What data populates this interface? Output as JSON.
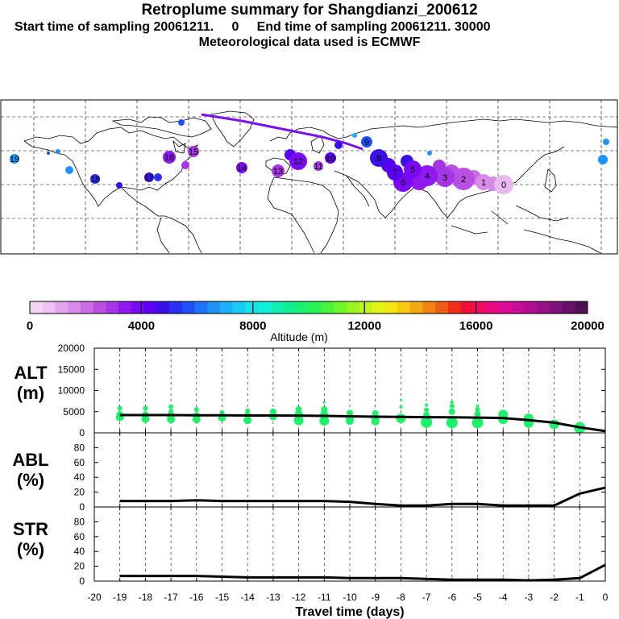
{
  "header": {
    "title": "Retroplume summary for Shangdianzi_200612",
    "sampling": "Start time of sampling 20061211.     0     End time of sampling 20061211. 30000",
    "met": "Meteorological data used is ECMWF"
  },
  "colorbar": {
    "ticks": [
      "0",
      "4000",
      "8000",
      "12000",
      "16000",
      "20000"
    ],
    "label": "Altitude (m)",
    "colors": [
      "#f3d6f6",
      "#edc1f1",
      "#e3a6ec",
      "#d88ae7",
      "#cb6ee3",
      "#b94fe0",
      "#a635e6",
      "#9019ef",
      "#7a0af4",
      "#5a00f0",
      "#3a10e8",
      "#2a2ef0",
      "#2050f5",
      "#1d72f6",
      "#1d92f7",
      "#1bb0f7",
      "#18cdf4",
      "#16e4ea",
      "#13eed6",
      "#11efb4",
      "#12ef90",
      "#1af072",
      "#29f252",
      "#48f43a",
      "#6ff52a",
      "#98f522",
      "#bff41c",
      "#e0f218",
      "#f4e414",
      "#f8c812",
      "#f6a812",
      "#f28212",
      "#ef5c14",
      "#ef2e1a",
      "#f10e38",
      "#f00a62",
      "#e80a82",
      "#da0c96",
      "#c70c96",
      "#b10e92",
      "#981086",
      "#7e107a",
      "#661068",
      "#501056"
    ]
  },
  "map": {
    "trajectory_labels": [
      "0",
      "1",
      "2",
      "3",
      "4",
      "5",
      "6",
      "7",
      "8",
      "9",
      "10",
      "11",
      "12",
      "13",
      "14",
      "15",
      "16",
      "17",
      "18",
      "19"
    ]
  },
  "panels": {
    "alt_label": "ALT\n(m)",
    "abl_label": "ABL\n(%)",
    "str_label": "STR\n(%)",
    "xlabel": "Travel time (days)"
  },
  "chart_data": [
    {
      "type": "line",
      "title": "ALT (m)",
      "x": [
        -19,
        -18,
        -17,
        -16,
        -15,
        -14,
        -13,
        -12,
        -11,
        -10,
        -9,
        -8,
        -7,
        -6,
        -5,
        -4,
        -3,
        -2,
        -1,
        0
      ],
      "series": [
        {
          "name": "mean altitude",
          "values": [
            4200,
            4200,
            4200,
            4150,
            4150,
            4100,
            4100,
            4050,
            4000,
            3900,
            3800,
            3750,
            3700,
            3650,
            3600,
            3500,
            3000,
            2400,
            1300,
            400
          ]
        }
      ],
      "xlim": [
        -20,
        0
      ],
      "ylim": [
        0,
        20000
      ],
      "yticks": [
        0,
        5000,
        10000,
        15000,
        20000
      ],
      "scatter": [
        {
          "x": -19,
          "y": 5800,
          "s": 3
        },
        {
          "x": -19,
          "y": 4400,
          "s": 4
        },
        {
          "x": -19,
          "y": 3700,
          "s": 5
        },
        {
          "x": -18,
          "y": 5800,
          "s": 3
        },
        {
          "x": -18,
          "y": 4300,
          "s": 4
        },
        {
          "x": -18,
          "y": 3300,
          "s": 5
        },
        {
          "x": -17,
          "y": 6200,
          "s": 3
        },
        {
          "x": -17,
          "y": 5100,
          "s": 3
        },
        {
          "x": -17,
          "y": 4000,
          "s": 5
        },
        {
          "x": -17,
          "y": 3200,
          "s": 5
        },
        {
          "x": -16,
          "y": 5500,
          "s": 3
        },
        {
          "x": -16,
          "y": 4100,
          "s": 4
        },
        {
          "x": -16,
          "y": 3200,
          "s": 5
        },
        {
          "x": -15,
          "y": 4800,
          "s": 3
        },
        {
          "x": -15,
          "y": 3600,
          "s": 5
        },
        {
          "x": -14,
          "y": 5200,
          "s": 3
        },
        {
          "x": -14,
          "y": 4200,
          "s": 4
        },
        {
          "x": -14,
          "y": 3000,
          "s": 5
        },
        {
          "x": -13,
          "y": 5000,
          "s": 4
        },
        {
          "x": -13,
          "y": 3900,
          "s": 5
        },
        {
          "x": -12,
          "y": 5500,
          "s": 4
        },
        {
          "x": -12,
          "y": 4300,
          "s": 5
        },
        {
          "x": -12,
          "y": 2900,
          "s": 6
        },
        {
          "x": -11,
          "y": 7200,
          "s": 1.5
        },
        {
          "x": -11,
          "y": 5500,
          "s": 4
        },
        {
          "x": -11,
          "y": 4300,
          "s": 5
        },
        {
          "x": -11,
          "y": 2800,
          "s": 6
        },
        {
          "x": -10,
          "y": 4700,
          "s": 4
        },
        {
          "x": -10,
          "y": 3600,
          "s": 5
        },
        {
          "x": -10,
          "y": 2800,
          "s": 5
        },
        {
          "x": -9,
          "y": 4600,
          "s": 4
        },
        {
          "x": -9,
          "y": 3600,
          "s": 5
        },
        {
          "x": -9,
          "y": 2700,
          "s": 5
        },
        {
          "x": -8,
          "y": 7800,
          "s": 1.5
        },
        {
          "x": -8,
          "y": 6100,
          "s": 2
        },
        {
          "x": -8,
          "y": 3400,
          "s": 6
        },
        {
          "x": -7,
          "y": 6600,
          "s": 2
        },
        {
          "x": -7,
          "y": 5400,
          "s": 3
        },
        {
          "x": -7,
          "y": 4200,
          "s": 4
        },
        {
          "x": -7,
          "y": 2500,
          "s": 7
        },
        {
          "x": -6,
          "y": 7200,
          "s": 2
        },
        {
          "x": -6,
          "y": 6300,
          "s": 3
        },
        {
          "x": -6,
          "y": 5000,
          "s": 4
        },
        {
          "x": -6,
          "y": 2400,
          "s": 7
        },
        {
          "x": -5,
          "y": 6300,
          "s": 2
        },
        {
          "x": -5,
          "y": 5500,
          "s": 3
        },
        {
          "x": -5,
          "y": 4400,
          "s": 4
        },
        {
          "x": -5,
          "y": 2400,
          "s": 7
        },
        {
          "x": -4,
          "y": 4300,
          "s": 6
        },
        {
          "x": -4,
          "y": 3200,
          "s": 6
        },
        {
          "x": -3,
          "y": 3400,
          "s": 6
        },
        {
          "x": -3,
          "y": 2300,
          "s": 6
        },
        {
          "x": -2,
          "y": 2000,
          "s": 6
        },
        {
          "x": -1,
          "y": 1200,
          "s": 7
        },
        {
          "x": -1,
          "y": 900,
          "s": 5
        }
      ]
    },
    {
      "type": "line",
      "title": "ABL (%)",
      "x": [
        -19,
        -18,
        -17,
        -16,
        -15,
        -14,
        -13,
        -12,
        -11,
        -10,
        -9,
        -8,
        -7,
        -6,
        -5,
        -4,
        -3,
        -2,
        -1,
        0
      ],
      "series": [
        {
          "name": "ABL fraction",
          "values": [
            8,
            8,
            8,
            9,
            8,
            8,
            8,
            8,
            8,
            7,
            4,
            2,
            2,
            4,
            4,
            2,
            2,
            2,
            18,
            26
          ]
        }
      ],
      "xlim": [
        -20,
        0
      ],
      "ylim": [
        0,
        100
      ],
      "yticks": [
        0,
        20,
        40,
        60,
        80
      ]
    },
    {
      "type": "line",
      "title": "STR (%)",
      "x": [
        -19,
        -18,
        -17,
        -16,
        -15,
        -14,
        -13,
        -12,
        -11,
        -10,
        -9,
        -8,
        -7,
        -6,
        -5,
        -4,
        -3,
        -2,
        -1,
        0
      ],
      "series": [
        {
          "name": "stratosphere fraction",
          "values": [
            7,
            7,
            7,
            7,
            6,
            5,
            5,
            5,
            5,
            4,
            4,
            4,
            3,
            2,
            2,
            2,
            1,
            2,
            4,
            22
          ]
        }
      ],
      "xlim": [
        -20,
        0
      ],
      "ylim": [
        0,
        100
      ],
      "yticks": [
        0,
        20,
        40,
        60,
        80
      ],
      "xticks": [
        -20,
        -19,
        -18,
        -17,
        -16,
        -15,
        -14,
        -13,
        -12,
        -11,
        -10,
        -9,
        -8,
        -7,
        -6,
        -5,
        -4,
        -3,
        -2,
        -1,
        0
      ],
      "xlabel": "Travel time (days)"
    }
  ]
}
